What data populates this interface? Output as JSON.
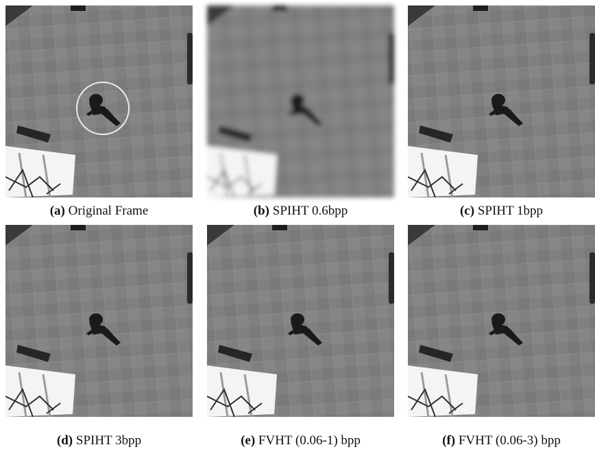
{
  "panels": [
    {
      "label": "(a)",
      "caption": "Original Frame"
    },
    {
      "label": "(b)",
      "caption": "SPIHT 0.6bpp"
    },
    {
      "label": "(c)",
      "caption": "SPIHT 1bpp"
    },
    {
      "label": "(d)",
      "caption": "SPIHT 3bpp"
    },
    {
      "label": "(e)",
      "caption": "FVHT (0.06-1) bpp"
    },
    {
      "label": "(f)",
      "caption": "FVHT (0.06-3) bpp"
    }
  ]
}
